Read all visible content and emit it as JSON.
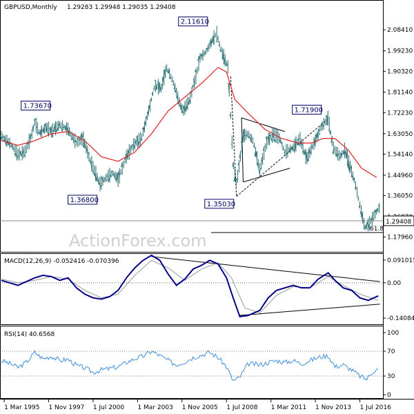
{
  "header": {
    "symbol": "GBPUSD,Monthly",
    "ohlc": "1.29283 1.29948 1.29035 1.29408"
  },
  "watermark": "ActionForex.com",
  "fib_label": "61.8",
  "colors": {
    "bars": "#2a6f73",
    "ma": "#e02020",
    "macd": "#00008b",
    "macd_signal": "#999999",
    "rsi": "#3a8dde",
    "trend": "#000000",
    "label_text": "#000066"
  },
  "chart_data": [
    {
      "type": "bar",
      "title": "GBPUSD,Monthly",
      "y_ticks": [
        "2.08410",
        "1.99230",
        "1.90320",
        "1.81140",
        "1.72230",
        "1.63050",
        "1.54140",
        "1.44960",
        "1.36050",
        "1.26870",
        "1.17960"
      ],
      "ylim": [
        1.13,
        2.16
      ],
      "current_price": "1.29408",
      "labels": [
        {
          "text": "2.11610",
          "t": 2007.9,
          "value": 2.1161
        },
        {
          "text": "1.73670",
          "t": 1996.6,
          "value": 1.7367
        },
        {
          "text": "1.71900",
          "t": 2014.6,
          "value": 1.719
        },
        {
          "text": "1.36800",
          "t": 2000.9,
          "value": 1.368
        },
        {
          "text": "1.35030",
          "t": 2009.1,
          "value": 1.3503
        }
      ],
      "series": [
        {
          "name": "GBPUSD",
          "points": [
            [
              1995.0,
              1.62
            ],
            [
              1995.5,
              1.59
            ],
            [
              1996.0,
              1.54
            ],
            [
              1996.4,
              1.55
            ],
            [
              1996.8,
              1.62
            ],
            [
              1997.0,
              1.68
            ],
            [
              1997.3,
              1.63
            ],
            [
              1997.7,
              1.66
            ],
            [
              1998.0,
              1.64
            ],
            [
              1998.5,
              1.67
            ],
            [
              1999.0,
              1.65
            ],
            [
              1999.5,
              1.59
            ],
            [
              1999.9,
              1.61
            ],
            [
              2000.3,
              1.52
            ],
            [
              2000.7,
              1.45
            ],
            [
              2000.9,
              1.41
            ],
            [
              2001.3,
              1.44
            ],
            [
              2001.7,
              1.46
            ],
            [
              2002.0,
              1.43
            ],
            [
              2002.5,
              1.53
            ],
            [
              2002.9,
              1.58
            ],
            [
              2003.4,
              1.61
            ],
            [
              2003.9,
              1.75
            ],
            [
              2004.2,
              1.84
            ],
            [
              2004.6,
              1.83
            ],
            [
              2004.9,
              1.92
            ],
            [
              2005.3,
              1.86
            ],
            [
              2005.7,
              1.76
            ],
            [
              2005.9,
              1.73
            ],
            [
              2006.3,
              1.78
            ],
            [
              2006.7,
              1.89
            ],
            [
              2006.9,
              1.96
            ],
            [
              2007.3,
              1.99
            ],
            [
              2007.9,
              2.07
            ],
            [
              2008.2,
              1.99
            ],
            [
              2008.6,
              1.92
            ],
            [
              2008.9,
              1.5
            ],
            [
              2009.1,
              1.41
            ],
            [
              2009.5,
              1.62
            ],
            [
              2009.8,
              1.63
            ],
            [
              2010.1,
              1.6
            ],
            [
              2010.5,
              1.47
            ],
            [
              2010.9,
              1.59
            ],
            [
              2011.3,
              1.63
            ],
            [
              2011.7,
              1.61
            ],
            [
              2012.0,
              1.55
            ],
            [
              2012.5,
              1.57
            ],
            [
              2012.9,
              1.61
            ],
            [
              2013.3,
              1.52
            ],
            [
              2013.7,
              1.58
            ],
            [
              2014.2,
              1.66
            ],
            [
              2014.6,
              1.7
            ],
            [
              2014.9,
              1.57
            ],
            [
              2015.3,
              1.53
            ],
            [
              2015.6,
              1.56
            ],
            [
              2015.9,
              1.49
            ],
            [
              2016.2,
              1.42
            ],
            [
              2016.5,
              1.32
            ],
            [
              2016.8,
              1.22
            ],
            [
              2017.1,
              1.24
            ],
            [
              2017.5,
              1.29
            ],
            [
              2017.7,
              1.31
            ]
          ]
        },
        {
          "name": "MA",
          "points": [
            [
              1995.0,
              1.6
            ],
            [
              1996.0,
              1.58
            ],
            [
              1997.0,
              1.6
            ],
            [
              1998.0,
              1.63
            ],
            [
              1999.0,
              1.64
            ],
            [
              2000.0,
              1.6
            ],
            [
              2001.0,
              1.53
            ],
            [
              2002.0,
              1.51
            ],
            [
              2003.0,
              1.55
            ],
            [
              2004.0,
              1.63
            ],
            [
              2005.0,
              1.73
            ],
            [
              2006.0,
              1.79
            ],
            [
              2007.0,
              1.85
            ],
            [
              2008.0,
              1.92
            ],
            [
              2008.5,
              1.9
            ],
            [
              2009.0,
              1.78
            ],
            [
              2009.8,
              1.72
            ],
            [
              2010.8,
              1.65
            ],
            [
              2011.8,
              1.61
            ],
            [
              2012.8,
              1.59
            ],
            [
              2013.6,
              1.59
            ],
            [
              2014.3,
              1.61
            ],
            [
              2015.0,
              1.61
            ],
            [
              2015.8,
              1.56
            ],
            [
              2016.6,
              1.48
            ],
            [
              2017.5,
              1.44
            ]
          ]
        }
      ]
    },
    {
      "type": "line",
      "title": "MACD(12,26,9) -0.052416 -0.070396",
      "y_ticks": [
        "0.091015",
        "0.00",
        "-0.140843"
      ],
      "ylim": [
        -0.16,
        0.11
      ],
      "series": [
        {
          "name": "MACD",
          "points": [
            [
              1995.0,
              0.01
            ],
            [
              1995.5,
              0.0
            ],
            [
              1996.0,
              -0.01
            ],
            [
              1996.5,
              0.005
            ],
            [
              1997.0,
              0.02
            ],
            [
              1997.5,
              0.03
            ],
            [
              1998.0,
              0.025
            ],
            [
              1998.5,
              0.01
            ],
            [
              1999.0,
              0.02
            ],
            [
              1999.5,
              -0.02
            ],
            [
              2000.0,
              -0.045
            ],
            [
              2000.5,
              -0.06
            ],
            [
              2001.0,
              -0.065
            ],
            [
              2001.5,
              -0.055
            ],
            [
              2002.0,
              -0.03
            ],
            [
              2002.5,
              0.02
            ],
            [
              2003.0,
              0.06
            ],
            [
              2003.5,
              0.09
            ],
            [
              2004.0,
              0.11
            ],
            [
              2004.5,
              0.09
            ],
            [
              2005.0,
              0.035
            ],
            [
              2005.5,
              -0.01
            ],
            [
              2006.0,
              0.015
            ],
            [
              2006.5,
              0.055
            ],
            [
              2007.0,
              0.07
            ],
            [
              2007.5,
              0.09
            ],
            [
              2008.0,
              0.075
            ],
            [
              2008.5,
              0.02
            ],
            [
              2008.9,
              -0.06
            ],
            [
              2009.3,
              -0.135
            ],
            [
              2009.8,
              -0.13
            ],
            [
              2010.5,
              -0.11
            ],
            [
              2011.0,
              -0.06
            ],
            [
              2011.5,
              -0.03
            ],
            [
              2012.0,
              -0.02
            ],
            [
              2012.5,
              -0.01
            ],
            [
              2013.0,
              -0.02
            ],
            [
              2013.5,
              -0.02
            ],
            [
              2014.0,
              0.015
            ],
            [
              2014.6,
              0.04
            ],
            [
              2015.0,
              0.01
            ],
            [
              2015.5,
              -0.02
            ],
            [
              2016.0,
              -0.03
            ],
            [
              2016.5,
              -0.06
            ],
            [
              2017.0,
              -0.07
            ],
            [
              2017.6,
              -0.052
            ]
          ]
        },
        {
          "name": "Signal",
          "points": [
            [
              1995.0,
              0.015
            ],
            [
              1996.0,
              0.0
            ],
            [
              1997.0,
              0.01
            ],
            [
              1998.0,
              0.025
            ],
            [
              1999.0,
              0.015
            ],
            [
              2000.0,
              -0.03
            ],
            [
              2001.0,
              -0.06
            ],
            [
              2002.0,
              -0.045
            ],
            [
              2003.0,
              0.03
            ],
            [
              2004.0,
              0.09
            ],
            [
              2005.0,
              0.06
            ],
            [
              2006.0,
              0.01
            ],
            [
              2007.0,
              0.055
            ],
            [
              2008.0,
              0.08
            ],
            [
              2008.8,
              0.02
            ],
            [
              2009.6,
              -0.1
            ],
            [
              2010.5,
              -0.12
            ],
            [
              2011.5,
              -0.05
            ],
            [
              2012.5,
              -0.015
            ],
            [
              2013.5,
              -0.02
            ],
            [
              2014.6,
              0.025
            ],
            [
              2015.5,
              -0.01
            ],
            [
              2016.5,
              -0.045
            ],
            [
              2017.6,
              -0.07
            ]
          ]
        }
      ]
    },
    {
      "type": "line",
      "title": "RSI(14) 40.6568",
      "y_ticks": [
        "100",
        "70",
        "30",
        "0"
      ],
      "ylim": [
        0,
        100
      ],
      "series": [
        {
          "name": "RSI",
          "points": [
            [
              1995.0,
              55
            ],
            [
              1995.5,
              50
            ],
            [
              1996.0,
              44
            ],
            [
              1996.5,
              52
            ],
            [
              1997.0,
              68
            ],
            [
              1997.5,
              58
            ],
            [
              1998.0,
              62
            ],
            [
              1998.5,
              55
            ],
            [
              1999.0,
              57
            ],
            [
              1999.5,
              47
            ],
            [
              2000.0,
              43
            ],
            [
              2000.5,
              36
            ],
            [
              2001.0,
              40
            ],
            [
              2001.5,
              42
            ],
            [
              2002.0,
              45
            ],
            [
              2002.5,
              52
            ],
            [
              2003.0,
              58
            ],
            [
              2003.5,
              62
            ],
            [
              2004.0,
              70
            ],
            [
              2004.5,
              63
            ],
            [
              2005.0,
              55
            ],
            [
              2005.5,
              48
            ],
            [
              2006.0,
              53
            ],
            [
              2006.5,
              60
            ],
            [
              2007.0,
              64
            ],
            [
              2007.5,
              68
            ],
            [
              2008.0,
              60
            ],
            [
              2008.5,
              45
            ],
            [
              2008.9,
              22
            ],
            [
              2009.3,
              28
            ],
            [
              2009.8,
              50
            ],
            [
              2010.5,
              48
            ],
            [
              2011.0,
              52
            ],
            [
              2011.5,
              55
            ],
            [
              2012.0,
              52
            ],
            [
              2012.5,
              55
            ],
            [
              2013.0,
              50
            ],
            [
              2013.5,
              55
            ],
            [
              2014.0,
              60
            ],
            [
              2014.6,
              63
            ],
            [
              2015.0,
              45
            ],
            [
              2015.5,
              48
            ],
            [
              2016.0,
              40
            ],
            [
              2016.5,
              30
            ],
            [
              2016.9,
              25
            ],
            [
              2017.3,
              38
            ],
            [
              2017.6,
              41
            ]
          ]
        }
      ]
    }
  ],
  "x_axis": {
    "labels": [
      "1 Mar 1995",
      "1 Nov 1997",
      "1 Jul 2000",
      "1 Mar 2003",
      "1 Nov 2005",
      "1 Jul 2008",
      "1 Mar 2011",
      "1 Nov 2013",
      "1 Jul 2016"
    ],
    "positions": [
      1995.17,
      1997.83,
      2000.5,
      2003.17,
      2005.83,
      2008.5,
      2011.17,
      2013.83,
      2016.5
    ]
  }
}
